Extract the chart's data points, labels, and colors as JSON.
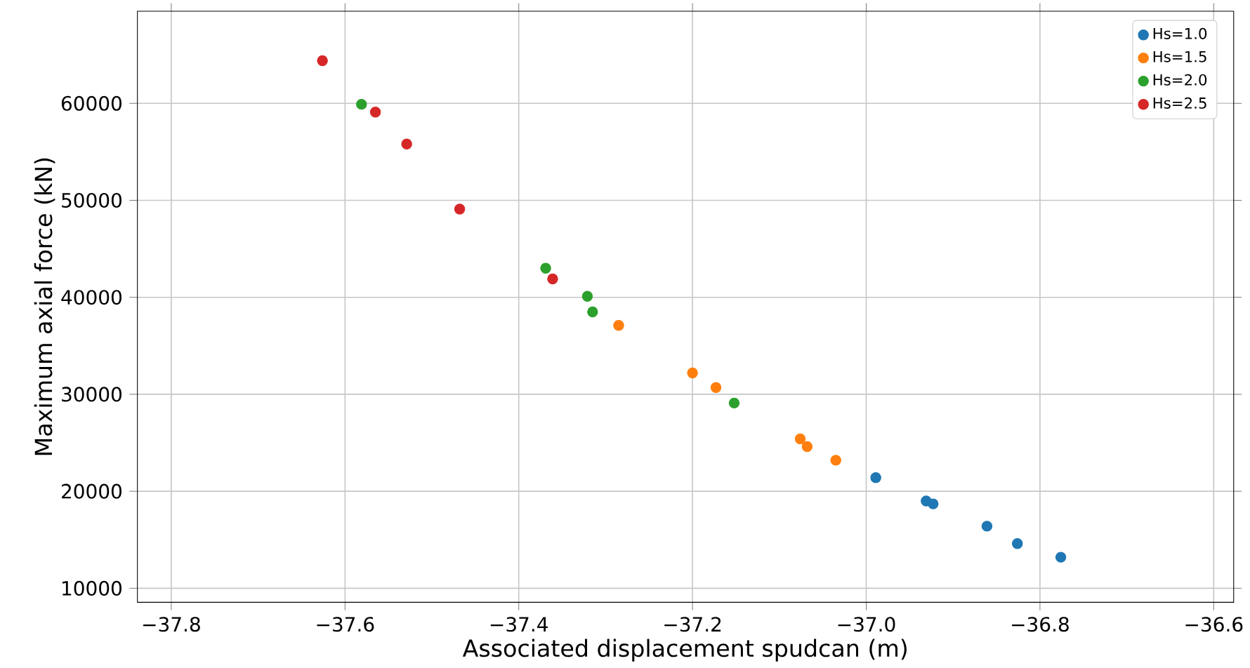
{
  "chart_data": {
    "type": "scatter",
    "xlabel": "Associated displacement spudcan (m)",
    "ylabel": "Maximum axial force (kN)",
    "xlim": [
      -37.839,
      -36.577
    ],
    "ylim": [
      8550,
      69500
    ],
    "xticks": [
      {
        "value": -37.8,
        "label": "−37.8"
      },
      {
        "value": -37.6,
        "label": "−37.6"
      },
      {
        "value": -37.4,
        "label": "−37.4"
      },
      {
        "value": -37.2,
        "label": "−37.2"
      },
      {
        "value": -37.0,
        "label": "−37.0"
      },
      {
        "value": -36.8,
        "label": "−36.8"
      },
      {
        "value": -36.6,
        "label": "−36.6"
      }
    ],
    "yticks": [
      10000,
      20000,
      30000,
      40000,
      50000,
      60000
    ],
    "grid": true,
    "legend": "top right",
    "series": [
      {
        "name": "Hs=1.0",
        "color": "#1f77b4",
        "x": [
          -36.989,
          -36.931,
          -36.923,
          -36.861,
          -36.826,
          -36.776
        ],
        "values": [
          21400,
          19000,
          18700,
          16400,
          14600,
          13200
        ]
      },
      {
        "name": "Hs=1.5",
        "color": "#ff7f0e",
        "x": [
          -37.285,
          -37.2,
          -37.173,
          -37.076,
          -37.068,
          -37.035
        ],
        "values": [
          37100,
          32200,
          30700,
          25400,
          24600,
          23200
        ]
      },
      {
        "name": "Hs=2.0",
        "color": "#2ca02c",
        "x": [
          -37.581,
          -37.369,
          -37.321,
          -37.315,
          -37.152
        ],
        "values": [
          59900,
          43000,
          40100,
          38500,
          29100
        ]
      },
      {
        "name": "Hs=2.5",
        "color": "#d62728",
        "x": [
          -37.626,
          -37.565,
          -37.529,
          -37.468,
          -37.361
        ],
        "values": [
          64400,
          59100,
          55800,
          49100,
          41900
        ]
      }
    ]
  }
}
